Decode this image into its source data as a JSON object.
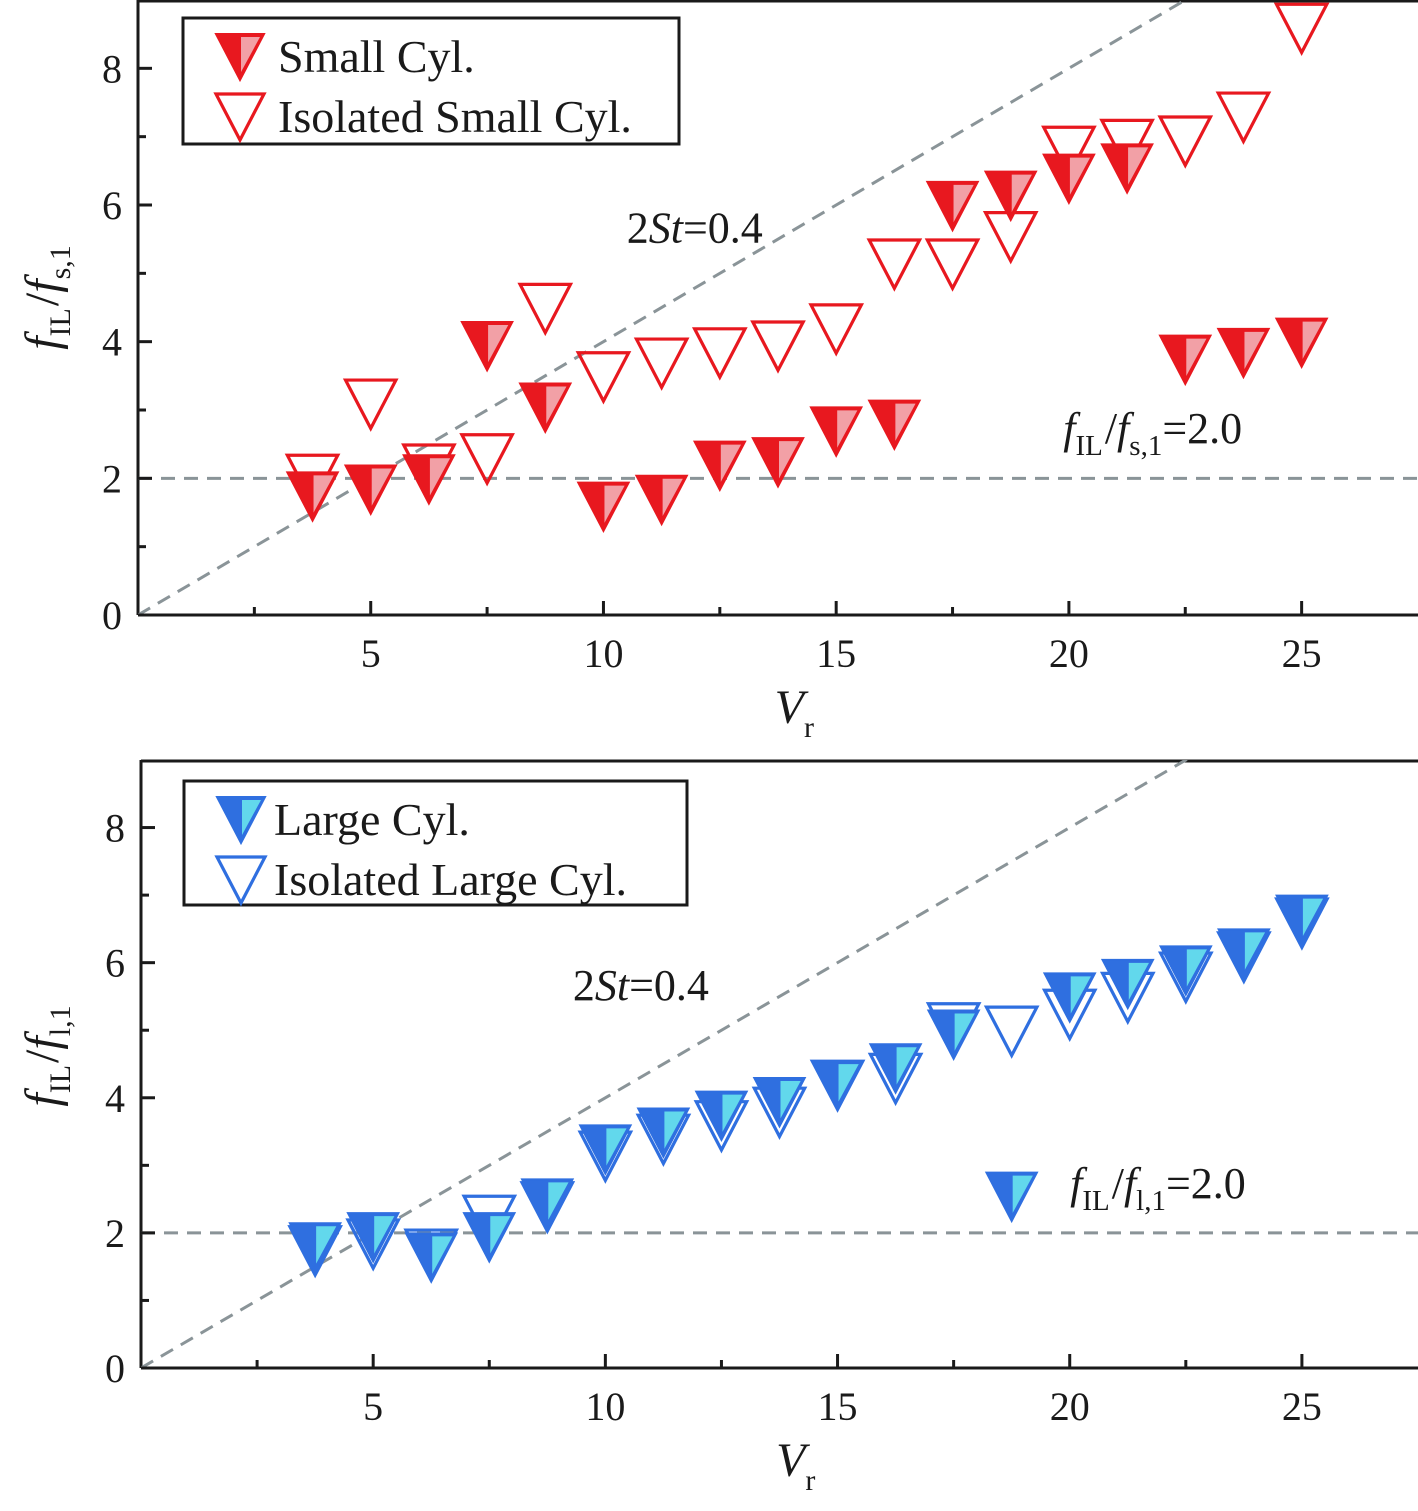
{
  "colors": {
    "small_fill": "#e8181f",
    "small_fill_light": "#f2a0a6",
    "large_fill": "#2f6fe0",
    "large_fill_light": "#62d8ec",
    "guide_line": "#8a9498",
    "axis": "#1a1a1a"
  },
  "chart_data": [
    {
      "type": "scatter",
      "panel": "top",
      "xlabel": "V",
      "xlabel_sub": "r",
      "ylabel_main": "f",
      "ylabel_sub1": "IL",
      "ylabel_sep": "/",
      "ylabel_main2": "f",
      "ylabel_sub2": "s,1",
      "xlim": [
        0,
        27.5
      ],
      "ylim": [
        0,
        9
      ],
      "xticks": [
        "5",
        "10",
        "15",
        "20",
        "25"
      ],
      "yticks": [
        "0",
        "2",
        "4",
        "6",
        "8"
      ],
      "legend_position": "top-left",
      "reference_lines": [
        {
          "kind": "slope",
          "slope": 0.4,
          "label_num": "2",
          "label_italic": "St",
          "label_rest": "=0.4"
        },
        {
          "kind": "horizontal",
          "y": 2.0,
          "label_f1": "f",
          "label_sub1": "IL",
          "label_sep": "/",
          "label_f2": "f",
          "label_sub2": "s,1",
          "label_rest": "=2.0"
        }
      ],
      "series": [
        {
          "name": "Small Cyl.",
          "style": "filled",
          "points": [
            [
              3.75,
              1.75
            ],
            [
              5.0,
              1.85
            ],
            [
              6.25,
              2.0
            ],
            [
              7.5,
              3.95
            ],
            [
              8.75,
              3.05
            ],
            [
              10.0,
              1.6
            ],
            [
              11.25,
              1.7
            ],
            [
              12.5,
              2.2
            ],
            [
              13.75,
              2.25
            ],
            [
              15.0,
              2.7
            ],
            [
              16.25,
              2.8
            ],
            [
              17.5,
              6.0
            ],
            [
              18.75,
              6.15
            ],
            [
              20.0,
              6.4
            ],
            [
              21.25,
              6.55
            ],
            [
              22.5,
              3.75
            ],
            [
              23.75,
              3.85
            ],
            [
              25.0,
              4.0
            ]
          ]
        },
        {
          "name": "Isolated Small Cyl.",
          "style": "open",
          "points": [
            [
              3.75,
              2.0
            ],
            [
              5.0,
              3.1
            ],
            [
              6.25,
              2.15
            ],
            [
              7.5,
              2.3
            ],
            [
              8.75,
              4.5
            ],
            [
              10.0,
              3.5
            ],
            [
              11.25,
              3.7
            ],
            [
              12.5,
              3.85
            ],
            [
              13.75,
              3.95
            ],
            [
              15.0,
              4.2
            ],
            [
              16.25,
              5.15
            ],
            [
              17.5,
              5.15
            ],
            [
              18.75,
              5.55
            ],
            [
              20.0,
              6.8
            ],
            [
              21.25,
              6.9
            ],
            [
              22.5,
              6.95
            ],
            [
              23.75,
              7.3
            ],
            [
              25.0,
              8.6
            ]
          ]
        }
      ]
    },
    {
      "type": "scatter",
      "panel": "bottom",
      "xlabel": "V",
      "xlabel_sub": "r",
      "ylabel_main": "f",
      "ylabel_sub1": "IL",
      "ylabel_sep": "/",
      "ylabel_main2": "f",
      "ylabel_sub2": "l,1",
      "xlim": [
        0,
        27.5
      ],
      "ylim": [
        0,
        9
      ],
      "xticks": [
        "5",
        "10",
        "15",
        "20",
        "25"
      ],
      "yticks": [
        "0",
        "2",
        "4",
        "6",
        "8"
      ],
      "legend_position": "top-left",
      "reference_lines": [
        {
          "kind": "slope",
          "slope": 0.4,
          "label_num": "2",
          "label_italic": "St",
          "label_rest": "=0.4"
        },
        {
          "kind": "horizontal",
          "y": 2.0,
          "label_f1": "f",
          "label_sub1": "IL",
          "label_sep": "/",
          "label_f2": "f",
          "label_sub2": "l,1",
          "label_rest": "=2.0"
        }
      ],
      "series": [
        {
          "name": "Large Cyl.",
          "style": "filled",
          "points": [
            [
              3.75,
              1.8
            ],
            [
              5.0,
              1.95
            ],
            [
              6.25,
              1.65
            ],
            [
              7.5,
              1.95
            ],
            [
              8.75,
              2.45
            ],
            [
              10.0,
              3.25
            ],
            [
              11.25,
              3.5
            ],
            [
              12.5,
              3.75
            ],
            [
              13.75,
              3.95
            ],
            [
              15.0,
              4.2
            ],
            [
              16.25,
              4.45
            ],
            [
              17.5,
              4.95
            ],
            [
              18.75,
              2.55
            ],
            [
              20.0,
              5.5
            ],
            [
              21.25,
              5.7
            ],
            [
              22.5,
              5.9
            ],
            [
              23.75,
              6.15
            ],
            [
              25.0,
              6.65
            ]
          ]
        },
        {
          "name": "Isolated Large Cyl.",
          "style": "open",
          "points": [
            [
              3.75,
              1.75
            ],
            [
              5.0,
              1.85
            ],
            [
              6.25,
              1.7
            ],
            [
              7.5,
              2.2
            ],
            [
              8.75,
              2.4
            ],
            [
              10.0,
              3.15
            ],
            [
              11.25,
              3.4
            ],
            [
              12.5,
              3.6
            ],
            [
              13.75,
              3.8
            ],
            [
              15.0,
              4.2
            ],
            [
              16.25,
              4.3
            ],
            [
              17.5,
              5.05
            ],
            [
              18.75,
              5.0
            ],
            [
              20.0,
              5.25
            ],
            [
              21.25,
              5.5
            ],
            [
              22.5,
              5.8
            ],
            [
              23.75,
              6.1
            ],
            [
              25.0,
              6.6
            ]
          ]
        }
      ]
    }
  ]
}
